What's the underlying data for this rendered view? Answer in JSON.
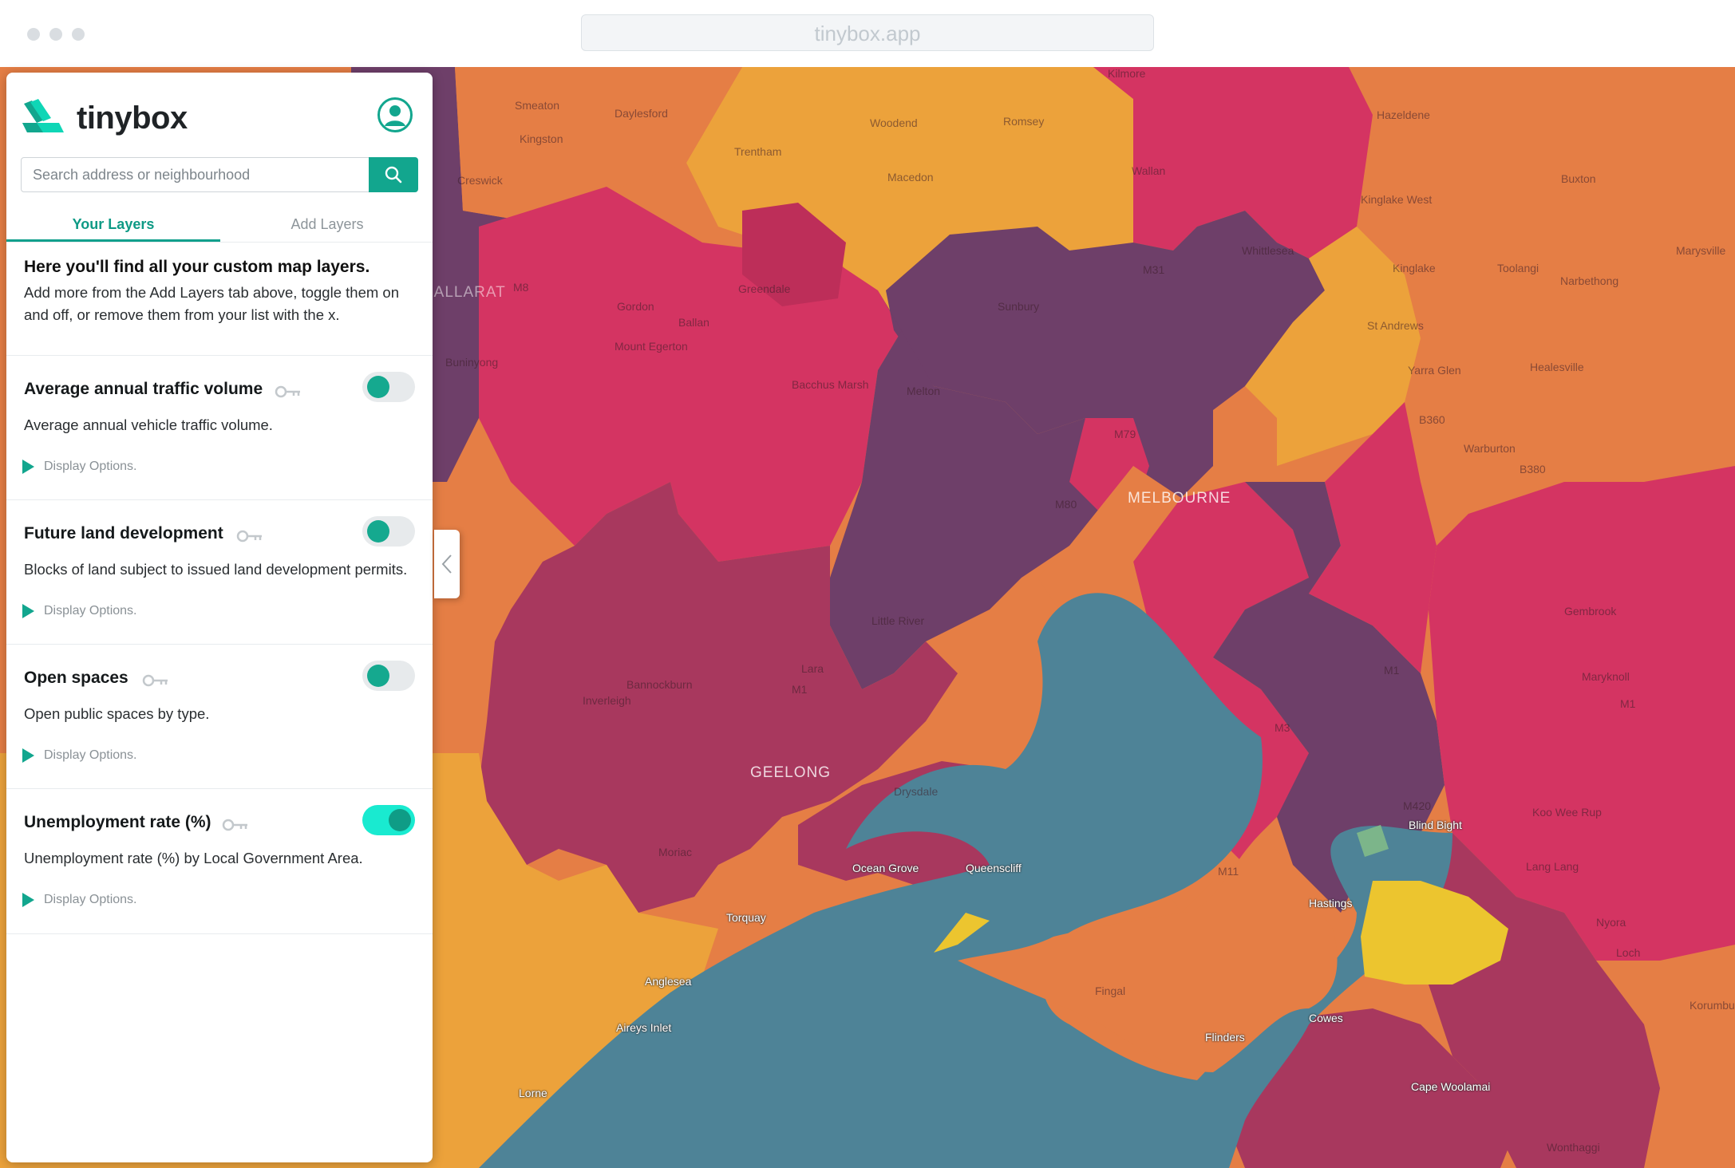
{
  "browser": {
    "url": "tinybox.app"
  },
  "app": {
    "brand": "tinybox"
  },
  "search": {
    "placeholder": "Search address or neighbourhood"
  },
  "tabs": [
    {
      "label": "Your Layers",
      "active": true
    },
    {
      "label": "Add Layers",
      "active": false
    }
  ],
  "intro": {
    "heading": "Here you'll find all your custom map layers.",
    "body": "Add more from the Add Layers tab above, toggle them on and off, or remove them from your list with the x."
  },
  "layers": [
    {
      "title": "Average annual traffic volume",
      "description": "Average annual vehicle traffic volume.",
      "options_label": "Display Options.",
      "enabled": false
    },
    {
      "title": "Future land development",
      "description": "Blocks of land subject to issued land development permits.",
      "options_label": "Display Options.",
      "enabled": false
    },
    {
      "title": "Open spaces",
      "description": "Open public spaces by type.",
      "options_label": "Display Options.",
      "enabled": false
    },
    {
      "title": "Unemployment rate (%)",
      "description": "Unemployment rate (%) by Local Government Area.",
      "options_label": "Display Options.",
      "enabled": true
    }
  ],
  "map": {
    "places": [
      "Kilmore",
      "Smeaton",
      "Daylesford",
      "Woodend",
      "Romsey",
      "Hazeldene",
      "Kingston",
      "Trentham",
      "Creswick",
      "Macedon",
      "Wallan",
      "Kinglake West",
      "Buxton",
      "Whittlesea",
      "Kinglake",
      "Toolangi",
      "Marysville",
      "Narbethong",
      "BALLARAT",
      "Greendale",
      "Gordon",
      "Ballan",
      "Sunbury",
      "St Andrews",
      "Mount Egerton",
      "Buninyong",
      "Yarra Glen",
      "Healesville",
      "Bacchus Marsh",
      "Melton",
      "Warburton",
      "MELBOURNE",
      "Little River",
      "Gembrook",
      "Lara",
      "Bannockburn",
      "Maryknoll",
      "Inverleigh",
      "GEELONG",
      "Drysdale",
      "Koo Wee Rup",
      "Moriac",
      "Ocean Grove",
      "Queenscliff",
      "Blind Bight",
      "Lang Lang",
      "Torquay",
      "Hastings",
      "Nyora",
      "Loch",
      "Anglesea",
      "Fingal",
      "Korumburra",
      "Aireys Inlet",
      "Flinders",
      "Cowes",
      "Lorne",
      "Cape Woolamai",
      "Wonthaggi"
    ],
    "roads": [
      "M31",
      "M8",
      "M80",
      "M79",
      "B360",
      "B380",
      "M1",
      "M420",
      "M11",
      "M3",
      "M1",
      "M1"
    ],
    "colors": {
      "lowest": "#eca23b",
      "low": "#e57e45",
      "mid": "#d43462",
      "high": "#a8385e",
      "highest": "#6e3f69",
      "water": "#4e8397",
      "highlight": "#ecc52f",
      "accent": "#12a68e"
    }
  }
}
